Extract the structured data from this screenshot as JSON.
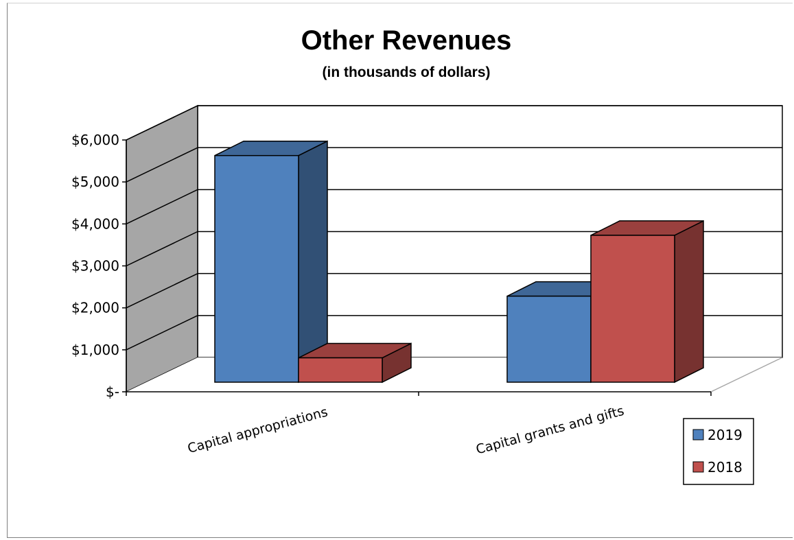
{
  "chart_data": {
    "type": "bar",
    "title": "Other Revenues",
    "subtitle": "(in thousands of dollars)",
    "categories": [
      "Capital appropriations",
      "Capital grants and gifts"
    ],
    "series": [
      {
        "name": "2019",
        "values": [
          5400,
          2050
        ],
        "color": "#4f81bd"
      },
      {
        "name": "2018",
        "values": [
          580,
          3500
        ],
        "color": "#c0504d"
      }
    ],
    "ylim": [
      0,
      6000
    ],
    "y_ticks": [
      "$-",
      "$1,000",
      "$2,000",
      "$3,000",
      "$4,000",
      "$5,000",
      "$6,000"
    ],
    "grid": true,
    "legend_position": "bottom-right",
    "style": "3d-clustered-column"
  }
}
